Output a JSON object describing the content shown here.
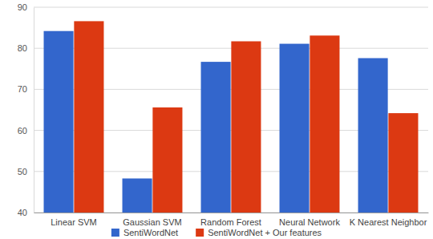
{
  "chart_data": {
    "type": "bar",
    "categories": [
      "Linear SVM",
      "Gaussian SVM",
      "Random Forest",
      "Neural Network",
      "K Nearest Neighbor"
    ],
    "series": [
      {
        "name": "SentiWordNet",
        "color": "#3366cc",
        "values": [
          84.2,
          48.3,
          76.7,
          81.1,
          77.6
        ]
      },
      {
        "name": "SentiWordNet + Our features",
        "color": "#dc3912",
        "values": [
          86.6,
          65.6,
          81.7,
          83.1,
          64.2
        ]
      }
    ],
    "ylim": [
      40,
      90
    ],
    "yticks": [
      40,
      50,
      60,
      70,
      80,
      90
    ],
    "grid": true,
    "legend": "bottom"
  }
}
